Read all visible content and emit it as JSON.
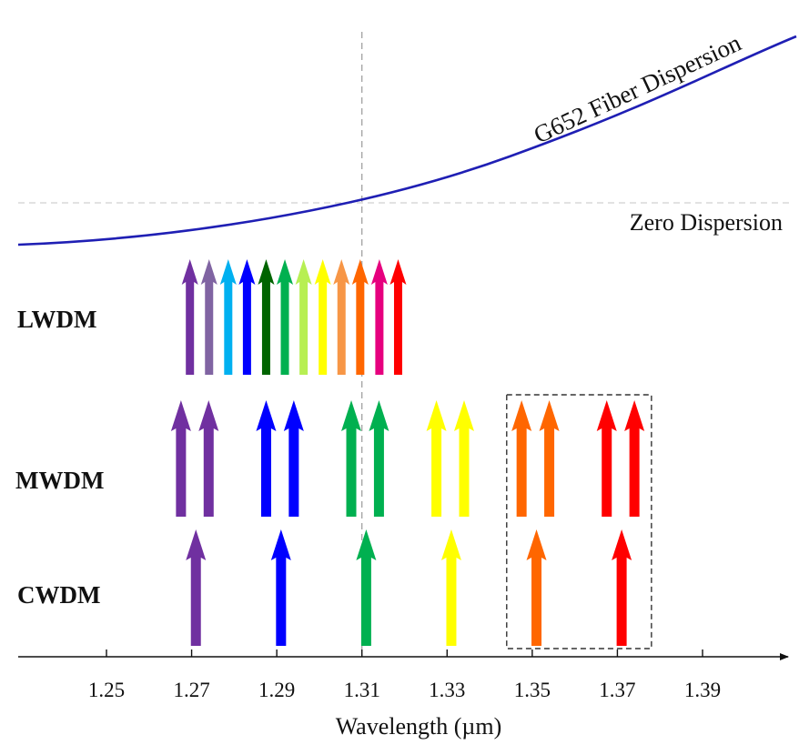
{
  "chart_data": {
    "type": "diagram",
    "xlabel": "Wavelength (µm)",
    "x_ticks": [
      "1.25",
      "1.27",
      "1.29",
      "1.31",
      "1.33",
      "1.35",
      "1.37",
      "1.39"
    ],
    "curve": {
      "label": "G652 Fiber Dispersion",
      "color": "#1f1fb4"
    },
    "zero_dispersion": {
      "label": "Zero Dispersion",
      "wavelength": 1.31
    },
    "highlight_box": {
      "x_range": [
        1.344,
        1.378
      ],
      "rows": [
        "MWDM",
        "CWDM"
      ]
    },
    "rows": [
      {
        "label": "LWDM",
        "channels": [
          {
            "wavelength": 1.2696,
            "color": "#7030a0"
          },
          {
            "wavelength": 1.2741,
            "color": "#8064a2"
          },
          {
            "wavelength": 1.2786,
            "color": "#00b0f0"
          },
          {
            "wavelength": 1.283,
            "color": "#0000ff"
          },
          {
            "wavelength": 1.2875,
            "color": "#006400"
          },
          {
            "wavelength": 1.2919,
            "color": "#00b050"
          },
          {
            "wavelength": 1.2963,
            "color": "#b7ef53"
          },
          {
            "wavelength": 1.3008,
            "color": "#ffff00"
          },
          {
            "wavelength": 1.3052,
            "color": "#f79646"
          },
          {
            "wavelength": 1.3096,
            "color": "#ff6600"
          },
          {
            "wavelength": 1.3141,
            "color": "#e6007e"
          },
          {
            "wavelength": 1.3185,
            "color": "#ff0000"
          }
        ]
      },
      {
        "label": "MWDM",
        "channels": [
          {
            "wavelength": 1.2675,
            "color": "#7030a0"
          },
          {
            "wavelength": 1.274,
            "color": "#7030a0"
          },
          {
            "wavelength": 1.2875,
            "color": "#0000ff"
          },
          {
            "wavelength": 1.294,
            "color": "#0000ff"
          },
          {
            "wavelength": 1.3075,
            "color": "#00b050"
          },
          {
            "wavelength": 1.314,
            "color": "#00b050"
          },
          {
            "wavelength": 1.3275,
            "color": "#ffff00"
          },
          {
            "wavelength": 1.334,
            "color": "#ffff00"
          },
          {
            "wavelength": 1.3475,
            "color": "#ff6600"
          },
          {
            "wavelength": 1.354,
            "color": "#ff6600"
          },
          {
            "wavelength": 1.3675,
            "color": "#ff0000"
          },
          {
            "wavelength": 1.374,
            "color": "#ff0000"
          }
        ]
      },
      {
        "label": "CWDM",
        "channels": [
          {
            "wavelength": 1.271,
            "color": "#7030a0"
          },
          {
            "wavelength": 1.291,
            "color": "#0000ff"
          },
          {
            "wavelength": 1.311,
            "color": "#00b050"
          },
          {
            "wavelength": 1.331,
            "color": "#ffff00"
          },
          {
            "wavelength": 1.351,
            "color": "#ff6600"
          },
          {
            "wavelength": 1.371,
            "color": "#ff0000"
          }
        ]
      }
    ]
  }
}
